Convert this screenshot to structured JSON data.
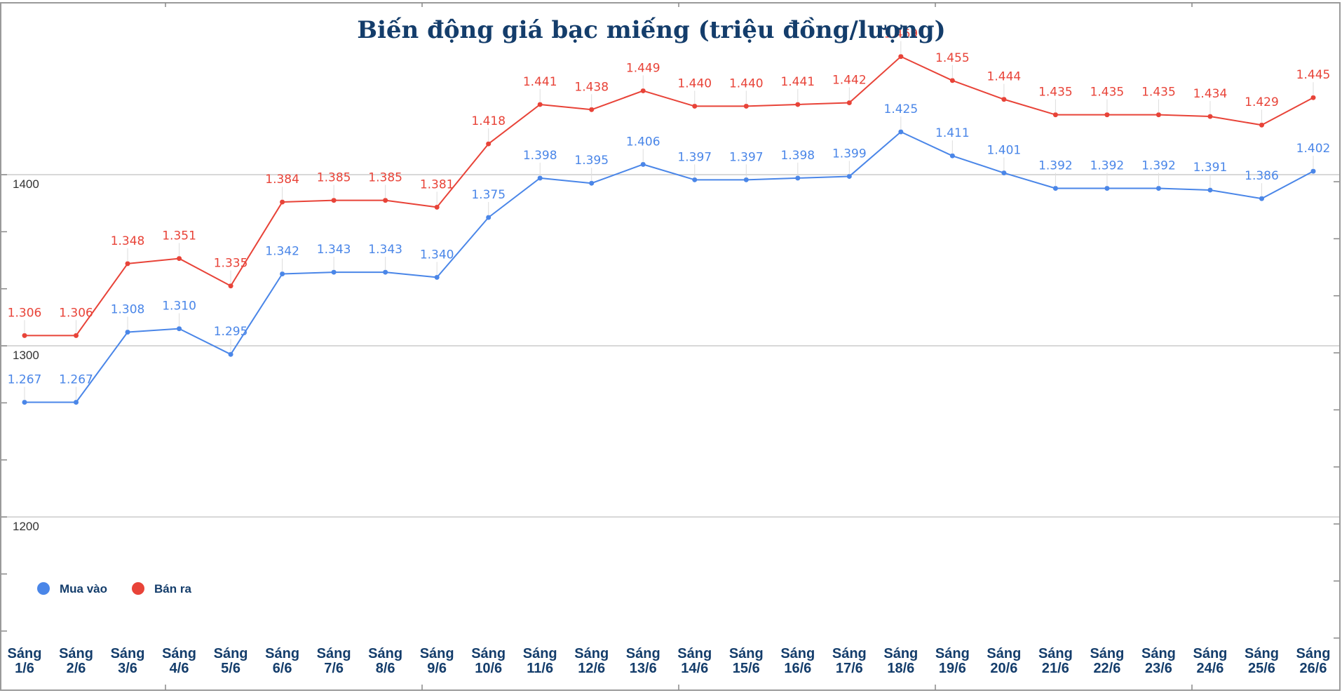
{
  "colors": {
    "buy": "#4a86e8",
    "sell": "#e84338",
    "title": "#143d6b",
    "axis_text": "#143d6b",
    "grid": "#cccccc"
  },
  "chart_data": {
    "type": "line",
    "title": "Biến động giá bạc miếng (triệu đồng/lượng)",
    "xlabel": "",
    "ylabel": "",
    "categories": [
      [
        "Sáng",
        "1/6"
      ],
      [
        "Sáng",
        "2/6"
      ],
      [
        "Sáng",
        "3/6"
      ],
      [
        "Sáng",
        "4/6"
      ],
      [
        "Sáng",
        "5/6"
      ],
      [
        "Sáng",
        "6/6"
      ],
      [
        "Sáng",
        "7/6"
      ],
      [
        "Sáng",
        "8/6"
      ],
      [
        "Sáng",
        "9/6"
      ],
      [
        "Sáng",
        "10/6"
      ],
      [
        "Sáng",
        "11/6"
      ],
      [
        "Sáng",
        "12/6"
      ],
      [
        "Sáng",
        "13/6"
      ],
      [
        "Sáng",
        "14/6"
      ],
      [
        "Sáng",
        "15/6"
      ],
      [
        "Sáng",
        "16/6"
      ],
      [
        "Sáng",
        "17/6"
      ],
      [
        "Sáng",
        "18/6"
      ],
      [
        "Sáng",
        "19/6"
      ],
      [
        "Sáng",
        "20/6"
      ],
      [
        "Sáng",
        "21/6"
      ],
      [
        "Sáng",
        "22/6"
      ],
      [
        "Sáng",
        "23/6"
      ],
      [
        "Sáng",
        "24/6"
      ],
      [
        "Sáng",
        "25/6"
      ],
      [
        "Sáng",
        "26/6"
      ]
    ],
    "y_ticks": [
      1200,
      1300,
      1400
    ],
    "ylim": [
      1133,
      1467
    ],
    "grid": true,
    "legend_position": "bottom-left",
    "series": [
      {
        "name": "Mua vào",
        "color": "#4a86e8",
        "values": [
          1267,
          1267,
          1308,
          1310,
          1295,
          1342,
          1343,
          1343,
          1340,
          1375,
          1398,
          1395,
          1406,
          1397,
          1397,
          1398,
          1399,
          1425,
          1411,
          1401,
          1392,
          1392,
          1392,
          1391,
          1386,
          1402
        ],
        "labels": [
          "1.267",
          "1.267",
          "1.308",
          "1.310",
          "1.295",
          "1.342",
          "1.343",
          "1.343",
          "1.340",
          "1.375",
          "1.398",
          "1.395",
          "1.406",
          "1.397",
          "1.397",
          "1.398",
          "1.399",
          "1.425",
          "1.411",
          "1.401",
          "1.392",
          "1.392",
          "1.392",
          "1.391",
          "1.386",
          "1.402"
        ]
      },
      {
        "name": "Bán ra",
        "color": "#e84338",
        "values": [
          1306,
          1306,
          1348,
          1351,
          1335,
          1384,
          1385,
          1385,
          1381,
          1418,
          1441,
          1438,
          1449,
          1440,
          1440,
          1441,
          1442,
          1469,
          1455,
          1444,
          1435,
          1435,
          1435,
          1434,
          1429,
          1445
        ],
        "labels": [
          "1.306",
          "1.306",
          "1.348",
          "1.351",
          "1.335",
          "1.384",
          "1.385",
          "1.385",
          "1.381",
          "1.418",
          "1.441",
          "1.438",
          "1.449",
          "1.440",
          "1.440",
          "1.441",
          "1.442",
          "1.469",
          "1.455",
          "1.444",
          "1.435",
          "1.435",
          "1.435",
          "1.434",
          "1.429",
          "1.445"
        ]
      }
    ]
  }
}
